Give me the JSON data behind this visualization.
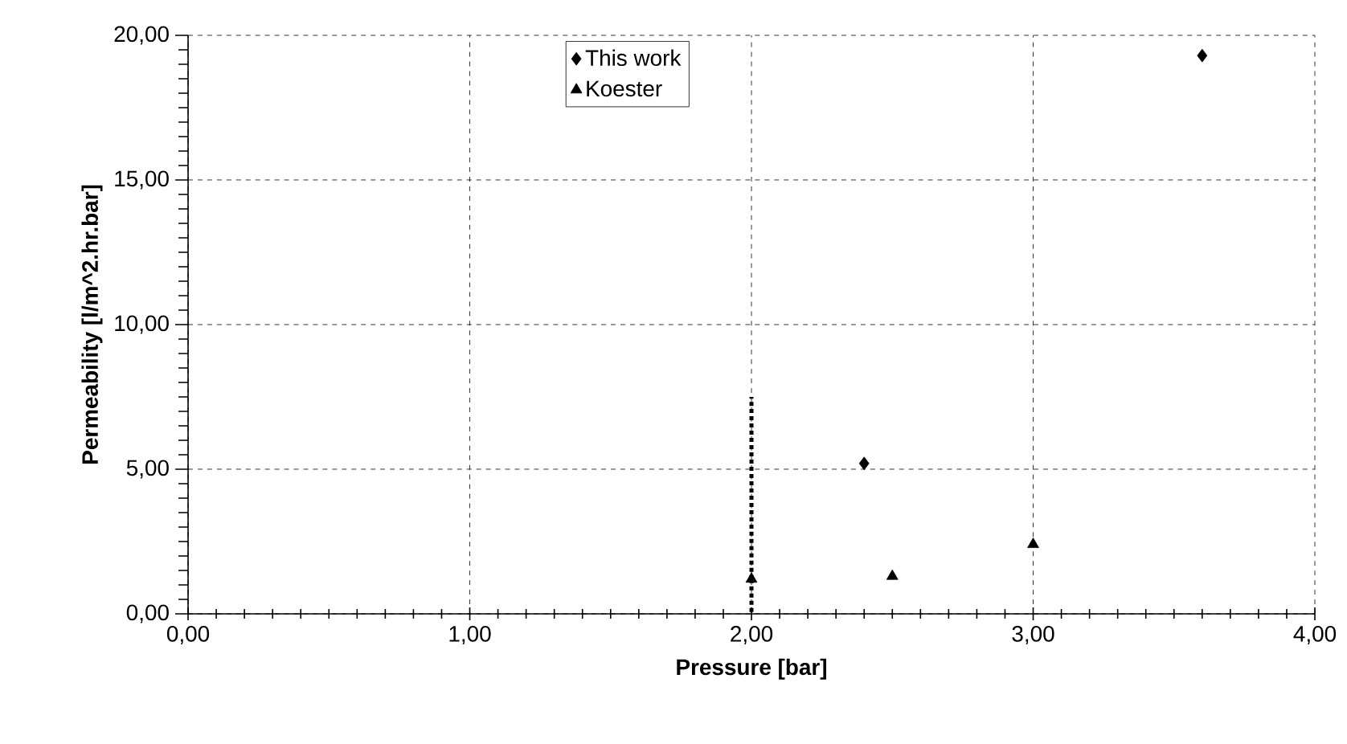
{
  "chart_data": {
    "type": "scatter",
    "xlabel": "Pressure [bar]",
    "ylabel": "Permeability [l/m^2.hr.bar]",
    "xlim": [
      0,
      4
    ],
    "ylim": [
      0,
      20
    ],
    "xticks": [
      {
        "value": 0,
        "label": "0,00"
      },
      {
        "value": 1,
        "label": "1,00"
      },
      {
        "value": 2,
        "label": "2,00"
      },
      {
        "value": 3,
        "label": "3,00"
      },
      {
        "value": 4,
        "label": "4,00"
      }
    ],
    "yticks": [
      {
        "value": 0,
        "label": "0,00"
      },
      {
        "value": 5,
        "label": "5,00"
      },
      {
        "value": 10,
        "label": "10,00"
      },
      {
        "value": 15,
        "label": "15,00"
      },
      {
        "value": 20,
        "label": "20,00"
      }
    ],
    "grid": true,
    "legend": "top",
    "series": [
      {
        "name": "This work",
        "color": "#000000",
        "marker": "diamond",
        "x": [
          2.4,
          3.6
        ],
        "values": [
          5.2,
          19.3
        ]
      },
      {
        "name": "Koester",
        "color": "#000000",
        "marker": "triangle",
        "x": [
          2.0,
          2.5,
          3.0
        ],
        "values": [
          1.2,
          1.3,
          2.4
        ],
        "errors": [
          [
            0,
            7.5
          ],
          null,
          null
        ]
      }
    ]
  }
}
